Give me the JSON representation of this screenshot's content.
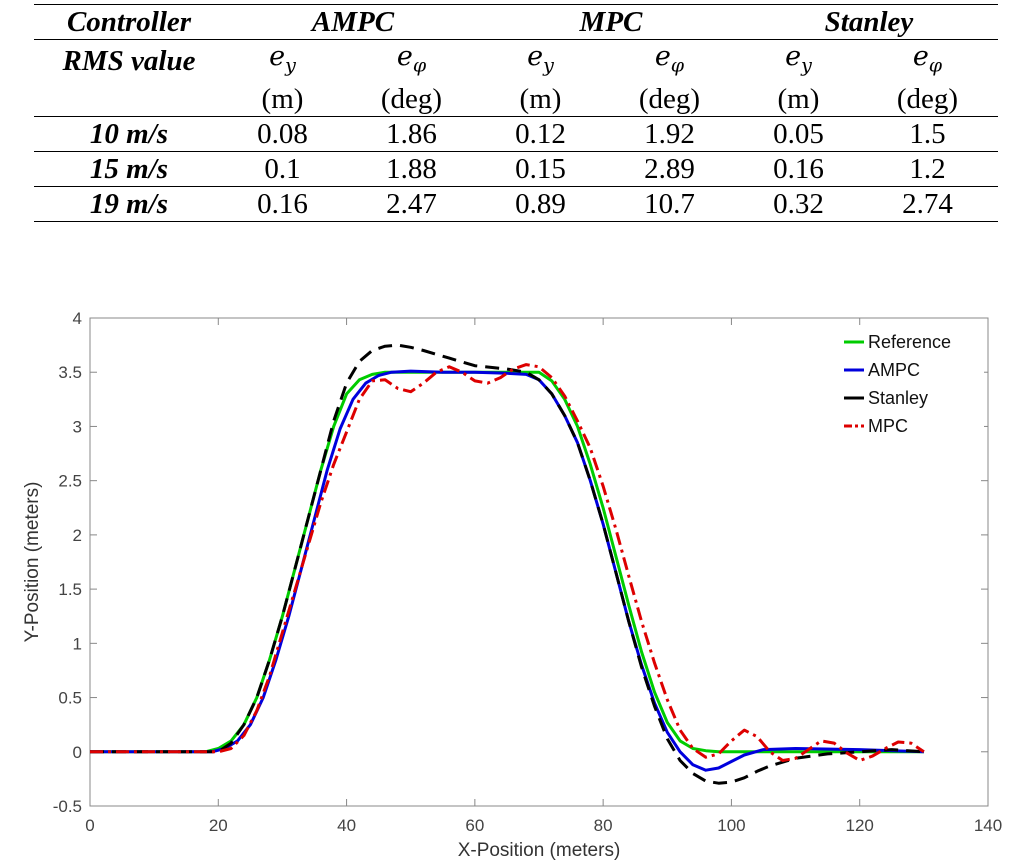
{
  "table": {
    "controller_label": "Controller",
    "rms_label": "RMS value",
    "controllers": [
      "AMPC",
      "MPC",
      "Stanley"
    ],
    "symbol_base": "e",
    "ey_sub": "y",
    "ephi_sub": "φ",
    "unit_m": "(m)",
    "unit_deg": "(deg)",
    "rows": [
      {
        "speed": "10 m/s",
        "values": [
          "0.08",
          "1.86",
          "0.12",
          "1.92",
          "0.05",
          "1.5"
        ]
      },
      {
        "speed": "15 m/s",
        "values": [
          "0.1",
          "1.88",
          "0.15",
          "2.89",
          "0.16",
          "1.2"
        ]
      },
      {
        "speed": "19 m/s",
        "values": [
          "0.16",
          "2.47",
          "0.89",
          "10.7",
          "0.32",
          "2.74"
        ]
      }
    ]
  },
  "chart_data": {
    "type": "line",
    "title": "",
    "xlabel": "X-Position (meters)",
    "ylabel": "Y-Position (meters)",
    "xlim": [
      0,
      140
    ],
    "ylim": [
      -0.5,
      4
    ],
    "xticks": [
      "0",
      "20",
      "40",
      "60",
      "80",
      "100",
      "120",
      "140"
    ],
    "yticks": [
      "-0.5",
      "0",
      "0.5",
      "1",
      "1.5",
      "2",
      "2.5",
      "3",
      "3.5",
      "4"
    ],
    "grid": false,
    "legend_position": "top-right",
    "series": [
      {
        "name": "Reference",
        "color": "#00cc00",
        "dash": "solid",
        "x": [
          0,
          18,
          20,
          22,
          24,
          26,
          28,
          30,
          32,
          34,
          36,
          38,
          40,
          42,
          44,
          46,
          48,
          50,
          60,
          70,
          72,
          74,
          76,
          78,
          80,
          82,
          84,
          86,
          88,
          90,
          92,
          94,
          96,
          98,
          130
        ],
        "y": [
          0,
          0,
          0.03,
          0.1,
          0.25,
          0.5,
          0.85,
          1.25,
          1.7,
          2.15,
          2.6,
          3.0,
          3.3,
          3.43,
          3.48,
          3.5,
          3.5,
          3.5,
          3.5,
          3.5,
          3.42,
          3.25,
          3.0,
          2.65,
          2.25,
          1.8,
          1.35,
          0.92,
          0.55,
          0.27,
          0.1,
          0.03,
          0.01,
          0,
          0
        ]
      },
      {
        "name": "AMPC",
        "color": "#0000dd",
        "dash": "solid",
        "x": [
          0,
          19,
          21,
          23,
          25,
          27,
          29,
          31,
          33,
          35,
          37,
          39,
          41,
          43,
          45,
          47,
          50,
          55,
          60,
          65,
          68,
          70,
          72,
          74,
          76,
          78,
          80,
          82,
          84,
          86,
          88,
          90,
          92,
          94,
          96,
          98,
          100,
          102,
          105,
          110,
          120,
          130
        ],
        "y": [
          0,
          0,
          0.03,
          0.1,
          0.25,
          0.5,
          0.85,
          1.25,
          1.7,
          2.15,
          2.6,
          2.98,
          3.25,
          3.4,
          3.47,
          3.5,
          3.51,
          3.5,
          3.5,
          3.49,
          3.48,
          3.43,
          3.3,
          3.1,
          2.85,
          2.5,
          2.1,
          1.65,
          1.2,
          0.8,
          0.45,
          0.18,
          0.0,
          -0.12,
          -0.17,
          -0.15,
          -0.09,
          -0.03,
          0.02,
          0.03,
          0.02,
          0
        ]
      },
      {
        "name": "Stanley",
        "color": "#000000",
        "dash": "dashed",
        "x": [
          0,
          20,
          22,
          24,
          26,
          28,
          30,
          32,
          34,
          36,
          38,
          40,
          42,
          44,
          46,
          48,
          50,
          52,
          56,
          60,
          65,
          68,
          70,
          72,
          74,
          76,
          78,
          80,
          82,
          84,
          86,
          88,
          90,
          92,
          94,
          96,
          98,
          100,
          102,
          104,
          106,
          110,
          115,
          120,
          125,
          130
        ],
        "y": [
          0,
          0,
          0.08,
          0.25,
          0.5,
          0.85,
          1.25,
          1.7,
          2.15,
          2.6,
          3.05,
          3.4,
          3.6,
          3.7,
          3.74,
          3.75,
          3.73,
          3.7,
          3.63,
          3.56,
          3.53,
          3.5,
          3.43,
          3.3,
          3.1,
          2.85,
          2.5,
          2.1,
          1.65,
          1.2,
          0.78,
          0.42,
          0.12,
          -0.08,
          -0.2,
          -0.27,
          -0.29,
          -0.28,
          -0.24,
          -0.18,
          -0.13,
          -0.06,
          -0.02,
          0,
          0.02,
          0
        ]
      },
      {
        "name": "MPC",
        "color": "#dd0000",
        "dash": "dashdot",
        "x": [
          0,
          20,
          22,
          24,
          26,
          28,
          30,
          32,
          34,
          36,
          38,
          40,
          42,
          44,
          46,
          48,
          50,
          52,
          54,
          56,
          58,
          60,
          62,
          64,
          66,
          68,
          70,
          72,
          74,
          76,
          78,
          80,
          82,
          84,
          86,
          88,
          90,
          92,
          94,
          96,
          98,
          100,
          102,
          104,
          106,
          108,
          110,
          112,
          114,
          116,
          118,
          120,
          122,
          124,
          126,
          128,
          130
        ],
        "y": [
          0,
          0,
          0.03,
          0.15,
          0.38,
          0.7,
          1.1,
          1.5,
          1.9,
          2.3,
          2.65,
          2.95,
          3.25,
          3.42,
          3.43,
          3.35,
          3.32,
          3.4,
          3.5,
          3.55,
          3.5,
          3.42,
          3.4,
          3.45,
          3.53,
          3.57,
          3.55,
          3.45,
          3.28,
          3.05,
          2.8,
          2.45,
          2.05,
          1.62,
          1.2,
          0.82,
          0.48,
          0.2,
          0.03,
          -0.05,
          -0.02,
          0.1,
          0.2,
          0.14,
          0.0,
          -0.08,
          -0.06,
          0.02,
          0.1,
          0.08,
          -0.01,
          -0.08,
          -0.04,
          0.03,
          0.09,
          0.08,
          0
        ]
      }
    ]
  }
}
